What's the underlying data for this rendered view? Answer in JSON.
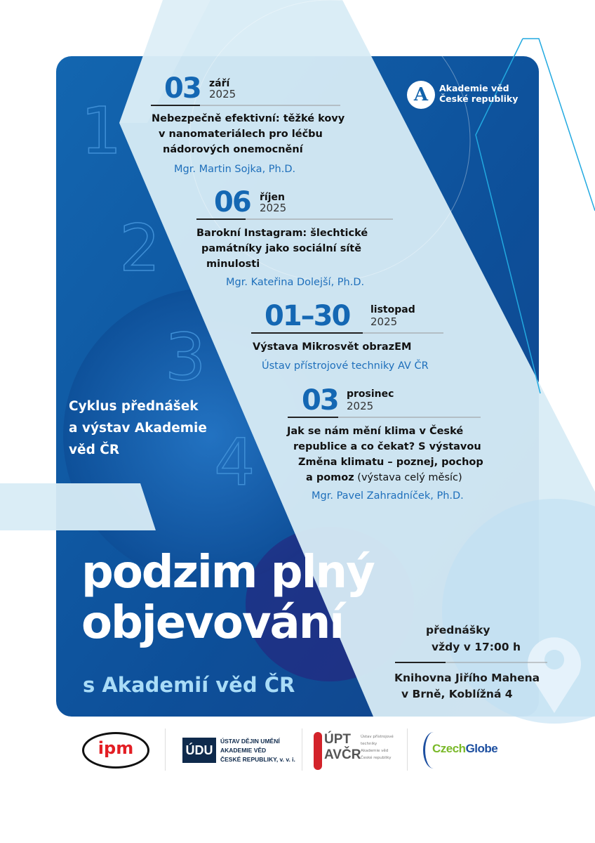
{
  "colors": {
    "brand_blue": "#1162ab",
    "dark_blue": "#0b4387",
    "light_band": "#d8ecf6",
    "date_blue": "#1467b3",
    "accent_cyan": "#22a9e0",
    "subtitle_blue": "#a9dcf7"
  },
  "logo": {
    "name": "Akademie věd České republiky",
    "line1": "Akademie věd",
    "line2": "České republiky"
  },
  "events": [
    {
      "day": "03",
      "month": "září",
      "year": "2025",
      "title_lines": [
        "Nebezpečně efektivní: těžké kovy",
        "v nanomateriálech pro léčbu",
        "nádorových onemocnění"
      ],
      "speaker": "Mgr. Martin Sojka, Ph.D."
    },
    {
      "day": "06",
      "month": "říjen",
      "year": "2025",
      "title_lines": [
        "Barokní Instagram: šlechtické",
        "památníky jako sociální sítě",
        "minulosti"
      ],
      "speaker": "Mgr. Kateřina Dolejší, Ph.D."
    },
    {
      "day": "01–30",
      "month": "listopad",
      "year": "2025",
      "title_lines": [
        "Výstava Mikrosvět obrazEM"
      ],
      "speaker": "Ústav přístrojové techniky AV ČR"
    },
    {
      "day": "03",
      "month": "prosinec",
      "year": "2025",
      "title_lines": [
        "Jak se nám mění klima v České",
        "republice a co čekat? S výstavou",
        "Změna klimatu – poznej, pochop"
      ],
      "title_last_bold": "a pomoz",
      "title_last_normal": " (výstava celý měsíc)",
      "speaker": "Mgr. Pavel Zahradníček, Ph.D."
    }
  ],
  "outline_numbers": [
    "1",
    "2",
    "3",
    "4"
  ],
  "cycle": {
    "lines": [
      "Cyklus přednášek",
      "a výstav Akademie",
      "věd ČR"
    ]
  },
  "headline": {
    "line1": "podzim plný",
    "line2": "objevování",
    "subtitle": "s Akademií věd ČR"
  },
  "info": {
    "time_line1": "přednášky",
    "time_line2": "vždy v 17:00 h",
    "place_line1": "Knihovna Jiřího Mahena",
    "place_line2": "v Brně, Koblížná 4"
  },
  "partners": [
    {
      "name": "ipm",
      "text": "ipm"
    },
    {
      "name": "udu",
      "mark": "ÚDU",
      "lines": [
        "ÚSTAV DĚJIN UMĚNÍ",
        "AKADEMIE VĚD",
        "ČESKÉ REPUBLIKY, v. v. i."
      ]
    },
    {
      "name": "upt",
      "mark1": "ÚPT",
      "mark2": "AVČR",
      "lines": [
        "Ústav přístrojové",
        "techniky",
        "Akademie věd",
        "České republiky"
      ]
    },
    {
      "name": "czechglobe",
      "text1": "Czech",
      "text2": "Globe"
    }
  ]
}
